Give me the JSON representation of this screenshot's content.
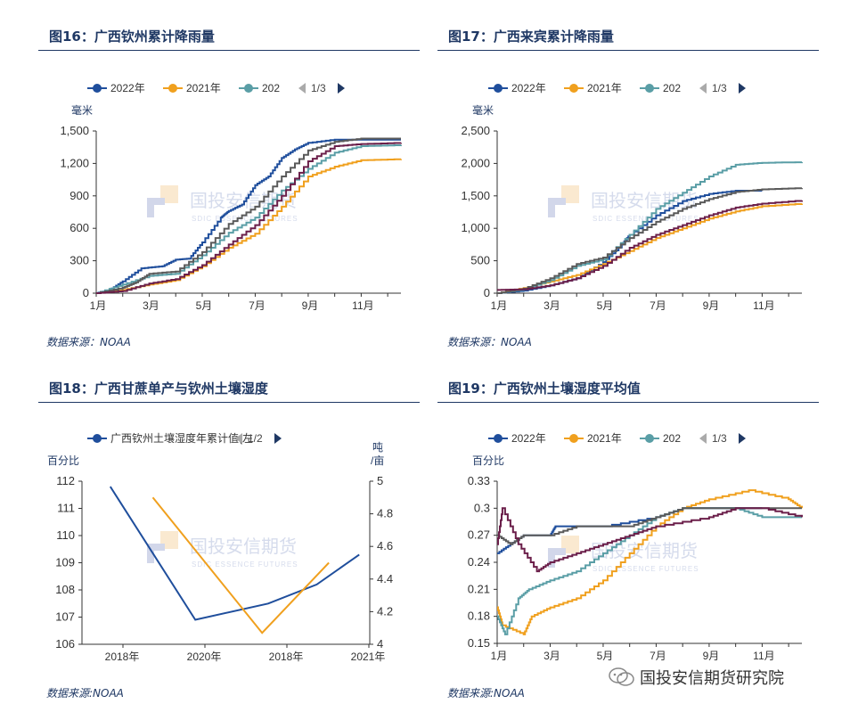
{
  "brand": {
    "text": "国投安信期货研究院"
  },
  "watermark": {
    "cn": "国投安信期货",
    "en": "SDIC ESSENCE FUTURES"
  },
  "charts": [
    {
      "title": "图16：广西钦州累计降雨量",
      "source": "数据来源：NOAA",
      "chart_data": {
        "type": "line",
        "unit": "毫米",
        "x_ticks": [
          "1月",
          "3月",
          "5月",
          "7月",
          "9月",
          "11月"
        ],
        "y_ticks": [
          "0",
          "300",
          "600",
          "900",
          "1,200",
          "1,500"
        ],
        "ylim": [
          0,
          1500
        ],
        "legend": [
          "2022年",
          "2021年",
          "202"
        ],
        "pager": "1/3",
        "series": [
          {
            "name": "2022年",
            "color": "#1f4e9c",
            "points": [
              [
                1,
                0
              ],
              [
                1.5,
                30
              ],
              [
                2,
                110
              ],
              [
                2.7,
                230
              ],
              [
                3.5,
                250
              ],
              [
                4,
                310
              ],
              [
                4.5,
                320
              ],
              [
                5,
                470
              ],
              [
                5.7,
                700
              ],
              [
                6,
                760
              ],
              [
                6.5,
                820
              ],
              [
                7,
                1000
              ],
              [
                7.5,
                1080
              ],
              [
                8,
                1250
              ],
              [
                8.5,
                1330
              ],
              [
                9,
                1390
              ],
              [
                10,
                1420
              ],
              [
                11,
                1420
              ],
              [
                12.5,
                1420
              ]
            ]
          },
          {
            "name": "2021年",
            "color": "#f0a01e",
            "points": [
              [
                1,
                0
              ],
              [
                2,
                30
              ],
              [
                3,
                80
              ],
              [
                4,
                120
              ],
              [
                5,
                250
              ],
              [
                6,
                420
              ],
              [
                7,
                550
              ],
              [
                8,
                800
              ],
              [
                9,
                1080
              ],
              [
                10,
                1170
              ],
              [
                11,
                1230
              ],
              [
                12.5,
                1240
              ]
            ]
          },
          {
            "name": "202",
            "color": "#5a9ea6",
            "points": [
              [
                1,
                0
              ],
              [
                2,
                80
              ],
              [
                3,
                160
              ],
              [
                4,
                180
              ],
              [
                5,
                350
              ],
              [
                6,
                560
              ],
              [
                7,
                700
              ],
              [
                8,
                950
              ],
              [
                9,
                1150
              ],
              [
                10,
                1300
              ],
              [
                11,
                1360
              ],
              [
                12.5,
                1370
              ]
            ]
          },
          {
            "color": "#5a5a5a",
            "points": [
              [
                1,
                0
              ],
              [
                2,
                50
              ],
              [
                2.5,
                100
              ],
              [
                3,
                180
              ],
              [
                4,
                200
              ],
              [
                5,
                380
              ],
              [
                6,
                640
              ],
              [
                7,
                800
              ],
              [
                8,
                1080
              ],
              [
                9,
                1320
              ],
              [
                10,
                1400
              ],
              [
                11,
                1430
              ],
              [
                12.5,
                1430
              ]
            ]
          },
          {
            "color": "#6b1f4a",
            "points": [
              [
                1,
                0
              ],
              [
                2,
                20
              ],
              [
                3,
                90
              ],
              [
                4,
                130
              ],
              [
                5,
                260
              ],
              [
                6,
                450
              ],
              [
                7,
                630
              ],
              [
                8,
                900
              ],
              [
                9,
                1220
              ],
              [
                10,
                1360
              ],
              [
                11,
                1380
              ],
              [
                12.5,
                1390
              ]
            ]
          }
        ]
      }
    },
    {
      "title": "图17：广西来宾累计降雨量",
      "source": "数据来源：NOAA",
      "chart_data": {
        "type": "line",
        "unit": "毫米",
        "x_ticks": [
          "1月",
          "3月",
          "5月",
          "7月",
          "9月",
          "11月"
        ],
        "y_ticks": [
          "0",
          "500",
          "1,000",
          "1,500",
          "2,000",
          "2,500"
        ],
        "ylim": [
          0,
          2500
        ],
        "legend": [
          "2022年",
          "2021年",
          "202"
        ],
        "pager": "1/3",
        "series": [
          {
            "name": "2022年",
            "color": "#1f4e9c",
            "points": [
              [
                1,
                0
              ],
              [
                2,
                40
              ],
              [
                3,
                120
              ],
              [
                4,
                230
              ],
              [
                5,
                480
              ],
              [
                5.7,
                750
              ],
              [
                6,
                900
              ],
              [
                7,
                1200
              ],
              [
                8,
                1420
              ],
              [
                9,
                1530
              ],
              [
                10,
                1580
              ],
              [
                11,
                1580
              ]
            ]
          },
          {
            "name": "2021年",
            "color": "#f0a01e",
            "points": [
              [
                1,
                0
              ],
              [
                2,
                80
              ],
              [
                3,
                180
              ],
              [
                4,
                280
              ],
              [
                5,
                450
              ],
              [
                6,
                650
              ],
              [
                7,
                850
              ],
              [
                8,
                1000
              ],
              [
                9,
                1150
              ],
              [
                10,
                1260
              ],
              [
                11,
                1340
              ],
              [
                12.5,
                1380
              ]
            ]
          },
          {
            "name": "202",
            "color": "#5a9ea6",
            "points": [
              [
                1,
                0
              ],
              [
                2,
                60
              ],
              [
                3,
                200
              ],
              [
                4,
                420
              ],
              [
                5,
                520
              ],
              [
                6,
                900
              ],
              [
                7,
                1300
              ],
              [
                8,
                1550
              ],
              [
                9,
                1800
              ],
              [
                10,
                1980
              ],
              [
                11,
                2010
              ],
              [
                12.5,
                2020
              ]
            ]
          },
          {
            "color": "#5a5a5a",
            "points": [
              [
                1,
                0
              ],
              [
                2,
                70
              ],
              [
                3,
                230
              ],
              [
                4,
                450
              ],
              [
                5,
                550
              ],
              [
                6,
                850
              ],
              [
                7,
                1100
              ],
              [
                8,
                1300
              ],
              [
                9,
                1450
              ],
              [
                10,
                1560
              ],
              [
                11,
                1600
              ],
              [
                12.5,
                1620
              ]
            ]
          },
          {
            "color": "#6b1f4a",
            "points": [
              [
                1,
                50
              ],
              [
                2,
                60
              ],
              [
                3,
                120
              ],
              [
                4,
                230
              ],
              [
                5,
                420
              ],
              [
                6,
                700
              ],
              [
                7,
                900
              ],
              [
                8,
                1050
              ],
              [
                9,
                1200
              ],
              [
                10,
                1320
              ],
              [
                11,
                1380
              ],
              [
                12.5,
                1430
              ]
            ]
          }
        ]
      }
    },
    {
      "title": "图18：广西甘蔗单产与钦州土壤湿度",
      "source": "数据来源:NOAA",
      "chart_data": {
        "type": "line",
        "unit_left": "百分比",
        "unit_right": "吨/亩",
        "x_ticks": [
          "2018年",
          "2020年",
          "2018年",
          "2021年"
        ],
        "y_ticks_left": [
          "106",
          "107",
          "108",
          "109",
          "110",
          "111",
          "112"
        ],
        "y_ticks_right": [
          "4",
          "4.2",
          "4.4",
          "4.6",
          "4.8",
          "5"
        ],
        "ylim_left": [
          106,
          112
        ],
        "ylim_right": [
          4,
          5
        ],
        "legend": [
          "广西钦州土壤湿度年累计值(左"
        ],
        "pager": "1/2",
        "series": [
          {
            "name": "广西钦州土壤湿度年累计值(左",
            "color": "#1f4e9c",
            "points": [
              [
                0.1,
                111.8
              ],
              [
                1.5,
                106.9
              ],
              [
                2.7,
                107.5
              ],
              [
                3.5,
                108.2
              ],
              [
                4.2,
                109.3
              ]
            ]
          },
          {
            "color": "#f0a01e",
            "axis": "right",
            "points": [
              [
                0.8,
                4.9
              ],
              [
                2.6,
                4.07
              ],
              [
                3.7,
                4.5
              ]
            ]
          }
        ]
      }
    },
    {
      "title": "图19：广西钦州土壤湿度平均值",
      "source": "数据来源:NOAA",
      "chart_data": {
        "type": "line",
        "unit": "百分比",
        "x_ticks": [
          "1月",
          "3月",
          "5月",
          "7月",
          "9月",
          "11月"
        ],
        "y_ticks": [
          "0.15",
          "0.18",
          "0.21",
          "0.24",
          "0.27",
          "0.3",
          "0.33"
        ],
        "ylim": [
          0.15,
          0.33
        ],
        "legend": [
          "2022年",
          "2021年",
          "202"
        ],
        "pager": "1/3",
        "series": [
          {
            "name": "2022年",
            "color": "#1f4e9c",
            "points": [
              [
                1,
                0.25
              ],
              [
                1.5,
                0.26
              ],
              [
                2,
                0.27
              ],
              [
                3,
                0.27
              ],
              [
                3.2,
                0.28
              ],
              [
                5,
                0.28
              ],
              [
                7,
                0.29
              ],
              [
                8,
                0.3
              ],
              [
                10,
                0.3
              ],
              [
                11,
                0.3
              ]
            ]
          },
          {
            "name": "2021年",
            "color": "#f0a01e",
            "points": [
              [
                1,
                0.19
              ],
              [
                1.2,
                0.17
              ],
              [
                2,
                0.16
              ],
              [
                2.3,
                0.18
              ],
              [
                3,
                0.19
              ],
              [
                4,
                0.2
              ],
              [
                5,
                0.22
              ],
              [
                6,
                0.25
              ],
              [
                7,
                0.28
              ],
              [
                8,
                0.3
              ],
              [
                9,
                0.31
              ],
              [
                10.5,
                0.32
              ],
              [
                12,
                0.31
              ],
              [
                12.5,
                0.3
              ]
            ]
          },
          {
            "name": "202",
            "color": "#5a9ea6",
            "points": [
              [
                1,
                0.18
              ],
              [
                1.3,
                0.16
              ],
              [
                1.8,
                0.2
              ],
              [
                2.2,
                0.21
              ],
              [
                3,
                0.22
              ],
              [
                4,
                0.23
              ],
              [
                5,
                0.25
              ],
              [
                6,
                0.27
              ],
              [
                7,
                0.29
              ],
              [
                8,
                0.3
              ],
              [
                10,
                0.3
              ],
              [
                11,
                0.29
              ],
              [
                12.5,
                0.29
              ]
            ]
          },
          {
            "color": "#5a5a5a",
            "points": [
              [
                1,
                0.27
              ],
              [
                1.5,
                0.26
              ],
              [
                2,
                0.27
              ],
              [
                3,
                0.27
              ],
              [
                4,
                0.28
              ],
              [
                6,
                0.28
              ],
              [
                7,
                0.29
              ],
              [
                8,
                0.3
              ],
              [
                12.5,
                0.3
              ]
            ]
          },
          {
            "color": "#6b1f4a",
            "points": [
              [
                1,
                0.26
              ],
              [
                1.2,
                0.3
              ],
              [
                1.8,
                0.26
              ],
              [
                2.5,
                0.23
              ],
              [
                3,
                0.24
              ],
              [
                4,
                0.25
              ],
              [
                5,
                0.26
              ],
              [
                6,
                0.27
              ],
              [
                7,
                0.28
              ],
              [
                9,
                0.29
              ],
              [
                10,
                0.3
              ],
              [
                11,
                0.3
              ],
              [
                12.5,
                0.29
              ]
            ]
          }
        ]
      }
    }
  ]
}
